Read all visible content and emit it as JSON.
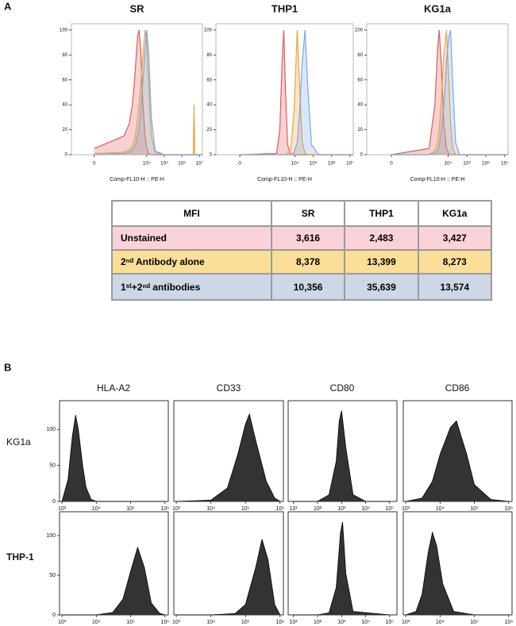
{
  "panels": [
    "A",
    "B"
  ],
  "chart_data": [
    {
      "type": "area",
      "title": "SR",
      "xlabel": "Comp-FL10-H :: PE-H",
      "xscale": "asinh",
      "xlim": [
        -200,
        15000000
      ],
      "xticks": [
        0,
        {
          "value": 10000,
          "label": "10⁴"
        },
        {
          "value": 100000,
          "label": "10⁵"
        },
        {
          "value": 1000000,
          "label": "10⁶"
        },
        {
          "value": 10000000,
          "label": "10⁷"
        }
      ],
      "ylim": [
        0,
        105
      ],
      "yticks": [
        0,
        20,
        40,
        60,
        80,
        100
      ],
      "x": [
        0,
        500,
        1000,
        1500,
        2000,
        2500,
        3000,
        3600,
        4500,
        6000,
        8000,
        10000,
        13000,
        18000,
        30000,
        100000,
        4500000,
        5000000,
        5500000,
        15000000
      ],
      "series": [
        {
          "color": "#e05a5a",
          "values": [
            5,
            15,
            25,
            40,
            60,
            80,
            95,
            100,
            85,
            40,
            15,
            5,
            1,
            0,
            0,
            0,
            0,
            0,
            0,
            0
          ]
        },
        {
          "color": "#f0a040",
          "values": [
            1,
            2,
            4,
            7,
            12,
            20,
            30,
            40,
            55,
            80,
            100,
            90,
            55,
            15,
            2,
            0,
            0,
            40,
            0,
            0
          ]
        },
        {
          "color": "#78a8e8",
          "values": [
            0,
            1,
            2,
            4,
            6,
            10,
            15,
            22,
            35,
            60,
            85,
            100,
            80,
            30,
            3,
            0,
            0,
            0,
            0,
            0
          ]
        }
      ]
    },
    {
      "type": "area",
      "title": "THP1",
      "xlabel": "Comp-FL10-H :: PE-H",
      "xscale": "asinh",
      "xlim": [
        -200,
        15000000
      ],
      "xticks": [
        0,
        {
          "value": 10000,
          "label": "10⁴"
        },
        {
          "value": 100000,
          "label": "10⁵"
        },
        {
          "value": 1000000,
          "label": "10⁶"
        },
        {
          "value": 10000000,
          "label": "10⁷"
        }
      ],
      "ylim": [
        0,
        105
      ],
      "yticks": [
        0,
        20,
        40,
        60,
        80,
        100
      ],
      "x": [
        0,
        1000,
        1500,
        2000,
        2483,
        3000,
        4000,
        6000,
        9000,
        13399,
        18000,
        25000,
        35639,
        50000,
        80000,
        200000,
        15000000
      ],
      "series": [
        {
          "color": "#e05a5a",
          "values": [
            0,
            1,
            20,
            75,
            100,
            55,
            8,
            0,
            0,
            0,
            0,
            0,
            0,
            0,
            0,
            0,
            0
          ]
        },
        {
          "color": "#f0a040",
          "values": [
            0,
            0,
            0,
            0,
            0,
            0,
            1,
            5,
            35,
            100,
            55,
            10,
            1,
            0,
            0,
            0,
            0
          ]
        },
        {
          "color": "#78a8e8",
          "values": [
            0,
            0,
            0,
            0,
            0,
            0,
            0,
            0,
            2,
            10,
            35,
            75,
            100,
            55,
            8,
            0,
            0
          ]
        }
      ]
    },
    {
      "type": "area",
      "title": "KG1a",
      "xlabel": "Comp-FL10-H :: PE-H",
      "xscale": "asinh",
      "xlim": [
        -200,
        15000000
      ],
      "xticks": [
        0,
        {
          "value": 10000,
          "label": "10⁴"
        },
        {
          "value": 100000,
          "label": "10⁵"
        },
        {
          "value": 1000000,
          "label": "10⁶"
        },
        {
          "value": 10000000,
          "label": "10⁷"
        }
      ],
      "ylim": [
        0,
        105
      ],
      "yticks": [
        0,
        20,
        40,
        60,
        80,
        100
      ],
      "x": [
        0,
        1000,
        2000,
        2800,
        3427,
        4500,
        6000,
        8273,
        11000,
        13574,
        18000,
        25000,
        40000,
        200000,
        15000000
      ],
      "series": [
        {
          "color": "#e05a5a",
          "values": [
            0,
            5,
            40,
            85,
            100,
            70,
            25,
            5,
            1,
            0,
            0,
            0,
            0,
            0,
            0
          ]
        },
        {
          "color": "#f0a040",
          "values": [
            0,
            0,
            3,
            10,
            20,
            45,
            80,
            100,
            60,
            25,
            5,
            0,
            0,
            0,
            0
          ]
        },
        {
          "color": "#78a8e8",
          "values": [
            0,
            0,
            1,
            3,
            8,
            20,
            40,
            75,
            95,
            100,
            55,
            10,
            0,
            0,
            0
          ]
        }
      ]
    },
    {
      "type": "area",
      "xscale": "log",
      "xlim": [
        850,
        1250000
      ],
      "xticks": [
        {
          "value": 1000,
          "label": "10³"
        },
        {
          "value": 10000,
          "label": "10⁴"
        },
        {
          "value": 100000,
          "label": "10⁵"
        },
        {
          "value": 1000000,
          "label": "10⁶"
        }
      ],
      "ylim": [
        0,
        140
      ],
      "yticks": [
        0,
        50,
        100
      ],
      "x": [
        1000,
        1500,
        2000,
        2500,
        3000,
        4000,
        5000,
        7000,
        10000,
        1000000
      ],
      "series": [
        {
          "color": "#333333",
          "values": [
            0,
            30,
            90,
            120,
            100,
            50,
            20,
            3,
            0,
            0
          ]
        }
      ]
    },
    {
      "type": "area",
      "xscale": "log",
      "xlim": [
        850,
        1250000
      ],
      "xticks": [
        {
          "value": 1000,
          "label": "10³"
        },
        {
          "value": 10000,
          "label": "10⁴"
        },
        {
          "value": 100000,
          "label": "10⁵"
        },
        {
          "value": 1000000,
          "label": "10⁶"
        }
      ],
      "ylim": [
        0,
        150
      ],
      "x": [
        1000,
        10000,
        30000,
        60000,
        100000,
        130000,
        200000,
        400000,
        700000,
        1000000
      ],
      "series": [
        {
          "color": "#333333",
          "values": [
            0,
            2,
            20,
            70,
            115,
            130,
            90,
            30,
            5,
            0
          ]
        }
      ]
    },
    {
      "type": "area",
      "xscale": "log",
      "xlim": [
        6,
        200000
      ],
      "xticks": [
        {
          "value": 10,
          "label": "10¹"
        },
        {
          "value": 100,
          "label": "10²"
        },
        {
          "value": 1000,
          "label": "10³"
        },
        {
          "value": 10000,
          "label": "10⁴"
        },
        {
          "value": 100000,
          "label": "10⁵"
        }
      ],
      "ylim": [
        0,
        150
      ],
      "x": [
        10,
        100,
        300,
        600,
        800,
        1000,
        1500,
        3000,
        10000,
        100000
      ],
      "series": [
        {
          "color": "#333333",
          "values": [
            0,
            0,
            10,
            60,
            120,
            135,
            80,
            10,
            0,
            0
          ]
        }
      ]
    },
    {
      "type": "area",
      "xscale": "log",
      "xlim": [
        850,
        1250000
      ],
      "xticks": [
        {
          "value": 1000,
          "label": "10³"
        },
        {
          "value": 10000,
          "label": "10⁴"
        },
        {
          "value": 100000,
          "label": "10⁵"
        },
        {
          "value": 1000000,
          "label": "10⁶"
        }
      ],
      "ylim": [
        0,
        150
      ],
      "x": [
        1000,
        3000,
        6000,
        10000,
        20000,
        30000,
        60000,
        100000,
        300000,
        1000000
      ],
      "series": [
        {
          "color": "#333333",
          "values": [
            0,
            5,
            30,
            70,
            110,
            120,
            70,
            25,
            3,
            0
          ]
        }
      ]
    },
    {
      "type": "area",
      "xscale": "log",
      "xlim": [
        850,
        1250000
      ],
      "xticks": [
        {
          "value": 1000,
          "label": "10³"
        },
        {
          "value": 10000,
          "label": "10⁴"
        },
        {
          "value": 100000,
          "label": "10⁵"
        },
        {
          "value": 1000000,
          "label": "10⁶"
        }
      ],
      "ylim": [
        0,
        130
      ],
      "yticks": [
        0,
        50,
        100
      ],
      "x": [
        1000,
        10000,
        30000,
        60000,
        100000,
        160000,
        250000,
        400000,
        700000,
        1000000
      ],
      "series": [
        {
          "color": "#333333",
          "values": [
            0,
            0,
            3,
            20,
            55,
            85,
            60,
            15,
            2,
            0
          ]
        }
      ]
    },
    {
      "type": "area",
      "xscale": "log",
      "xlim": [
        850,
        1250000
      ],
      "xticks": [
        {
          "value": 1000,
          "label": "10³"
        },
        {
          "value": 10000,
          "label": "10⁴"
        },
        {
          "value": 100000,
          "label": "10⁵"
        },
        {
          "value": 1000000,
          "label": "10⁶"
        }
      ],
      "ylim": [
        0,
        150
      ],
      "x": [
        1000,
        10000,
        50000,
        100000,
        200000,
        300000,
        450000,
        700000,
        1000000
      ],
      "series": [
        {
          "color": "#333333",
          "values": [
            0,
            0,
            2,
            15,
            70,
            110,
            80,
            15,
            0
          ]
        }
      ]
    },
    {
      "type": "area",
      "xscale": "log",
      "xlim": [
        6,
        200000
      ],
      "xticks": [
        {
          "value": 10,
          "label": "10¹"
        },
        {
          "value": 100,
          "label": "10²"
        },
        {
          "value": 1000,
          "label": "10³"
        },
        {
          "value": 10000,
          "label": "10⁴"
        },
        {
          "value": 100000,
          "label": "10⁵"
        }
      ],
      "ylim": [
        0,
        150
      ],
      "x": [
        10,
        100,
        300,
        600,
        900,
        1100,
        1500,
        3000,
        100000
      ],
      "series": [
        {
          "color": "#333333",
          "values": [
            0,
            0,
            3,
            40,
            120,
            135,
            60,
            5,
            0
          ]
        }
      ]
    },
    {
      "type": "area",
      "xscale": "log",
      "xlim": [
        850,
        1250000
      ],
      "xticks": [
        {
          "value": 1000,
          "label": "10³"
        },
        {
          "value": 10000,
          "label": "10⁴"
        },
        {
          "value": 100000,
          "label": "10⁵"
        },
        {
          "value": 1000000,
          "label": "10⁶"
        }
      ],
      "ylim": [
        0,
        150
      ],
      "x": [
        1000,
        2000,
        3000,
        4500,
        6000,
        8000,
        12000,
        25000,
        100000,
        1000000
      ],
      "series": [
        {
          "color": "#333333",
          "values": [
            0,
            5,
            30,
            90,
            120,
            100,
            45,
            5,
            0,
            0
          ]
        }
      ]
    }
  ],
  "table": {
    "header": [
      "MFI",
      "SR",
      "THP1",
      "KG1a"
    ],
    "rows": [
      [
        "Unstained",
        "3,616",
        "2,483",
        "3,427"
      ],
      [
        "2ⁿᵈ Antibody alone",
        "8,378",
        "13,399",
        "8,273"
      ],
      [
        "1ˢᵗ+2ⁿᵈ antibodies",
        "10,356",
        "35,639",
        "13,574"
      ]
    ]
  },
  "panel_b": {
    "columns": [
      "HLA-A2",
      "CD33",
      "CD80",
      "CD86"
    ],
    "rows": [
      "KG1a",
      "THP-1"
    ]
  }
}
